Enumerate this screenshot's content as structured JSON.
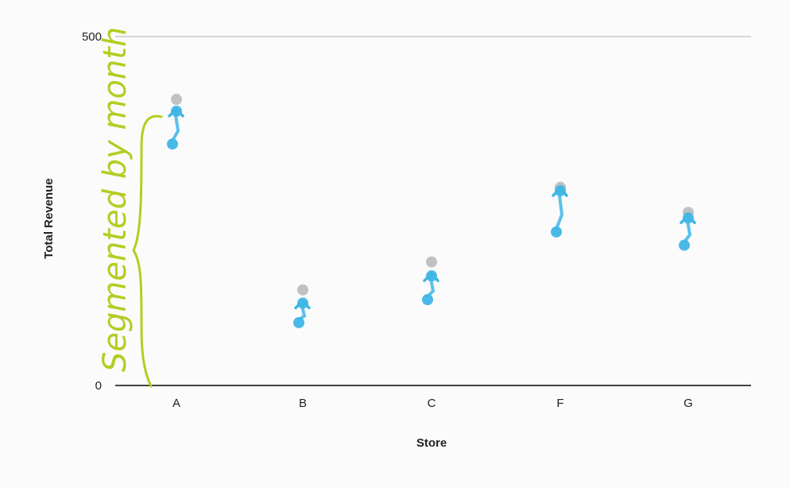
{
  "chart_data": {
    "type": "scatter",
    "title": "",
    "xlabel": "Store",
    "ylabel": "Total Revenue",
    "categories": [
      "A",
      "B",
      "C",
      "F",
      "G"
    ],
    "ylim": [
      0,
      500
    ],
    "y_ticks": [
      "0",
      "500"
    ],
    "grid": false,
    "series": [
      {
        "values": [
          410,
          137,
          177,
          284,
          248
        ],
        "color": "#b0b3b8"
      },
      {
        "values": [
          393,
          118,
          157,
          279,
          240
        ],
        "color": "#3fb6e6"
      },
      {
        "values": [
          346,
          90,
          123,
          220,
          201
        ],
        "color": "#3fb6e6"
      }
    ],
    "annotation": {
      "text": "Segmented by month",
      "color": "#b5cc22",
      "style": "handwritten brace spanning the points of store A"
    }
  }
}
